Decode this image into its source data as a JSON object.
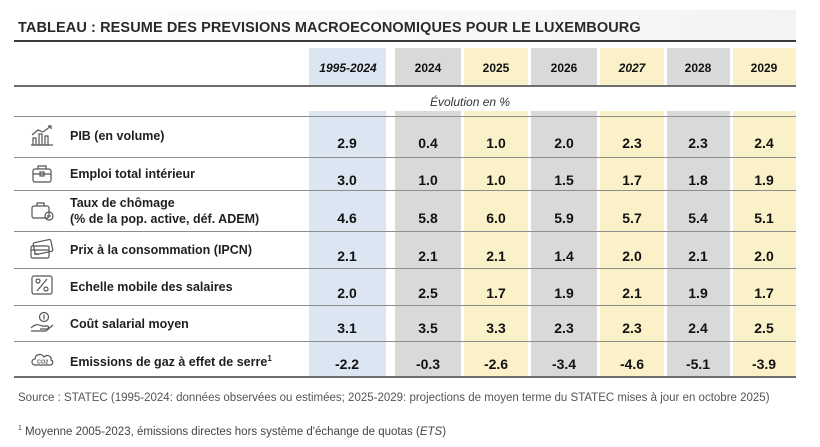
{
  "title": "TABLEAU : RESUME DES PREVISIONS MACROECONOMIQUES POUR LE LUXEMBOURG",
  "columns": [
    "1995-2024",
    "2024",
    "2025",
    "2026",
    "2027",
    "2028",
    "2029"
  ],
  "subheader": "Évolution en %",
  "rows": [
    {
      "icon": "gdp-chart-icon",
      "label": "PIB (en volume)",
      "values": [
        "2.9",
        "0.4",
        "1.0",
        "2.0",
        "2.3",
        "2.3",
        "2.4"
      ]
    },
    {
      "icon": "briefcase-icon",
      "label": "Emploi total intérieur",
      "values": [
        "3.0",
        "1.0",
        "1.0",
        "1.5",
        "1.7",
        "1.8",
        "1.9"
      ]
    },
    {
      "icon": "unemployment-briefcase-icon",
      "label_line1": "Taux de chômage",
      "label_line2": "(% de la pop. active, déf. ADEM)",
      "values": [
        "4.6",
        "5.8",
        "6.0",
        "5.9",
        "5.7",
        "5.4",
        "5.1"
      ]
    },
    {
      "icon": "price-card-icon",
      "label": "Prix à la consommation (IPCN)",
      "values": [
        "2.1",
        "2.1",
        "2.1",
        "1.4",
        "2.0",
        "2.1",
        "2.0"
      ]
    },
    {
      "icon": "percent-scale-icon",
      "label": "Echelle mobile des salaires",
      "values": [
        "2.0",
        "2.5",
        "1.7",
        "1.9",
        "2.1",
        "1.9",
        "1.7"
      ]
    },
    {
      "icon": "salary-hand-icon",
      "label": "Coût salarial moyen",
      "values": [
        "3.1",
        "3.5",
        "3.3",
        "2.3",
        "2.3",
        "2.4",
        "2.5"
      ]
    },
    {
      "icon": "co2-cloud-icon",
      "label": "Emissions de gaz à effet de serre",
      "label_sup": "1",
      "values": [
        "-2.2",
        "-0.3",
        "-2.6",
        "-3.4",
        "-4.6",
        "-5.1",
        "-3.9"
      ]
    }
  ],
  "source": "Source : STATEC (1995-2024: données observées ou estimées; 2025-2029: projections de moyen terme du STATEC mises à jour en octobre 2025)",
  "note_sup": "1",
  "note_text": " Moyenne 2005-2023, émissions directes hors système d'échange de quotas (",
  "note_ets": "ETS",
  "note_end": ")"
}
